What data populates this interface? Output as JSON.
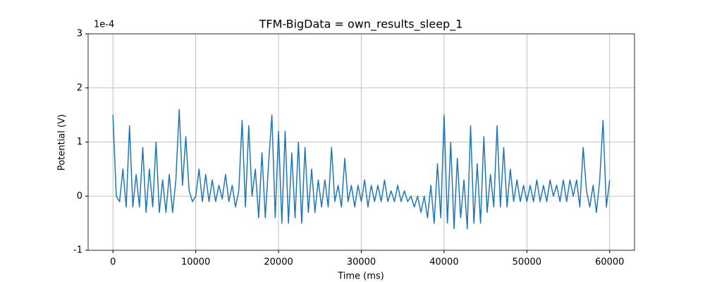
{
  "chart_data": {
    "type": "line",
    "title": "TFM-BigData = own_results_sleep_1",
    "x_label": "Time (ms)",
    "y_label": "Potential (V)",
    "y_offset_label": "1e-4",
    "x": [
      0,
      400,
      800,
      1200,
      1600,
      2000,
      2400,
      2800,
      3200,
      3600,
      4000,
      4400,
      4800,
      5200,
      5600,
      6000,
      6400,
      6800,
      7200,
      7600,
      8000,
      8400,
      8800,
      9200,
      9600,
      10000,
      10400,
      10800,
      11200,
      11600,
      12000,
      12400,
      12800,
      13200,
      13600,
      14000,
      14400,
      14800,
      15200,
      15600,
      16000,
      16400,
      16800,
      17200,
      17600,
      18000,
      18400,
      18800,
      19200,
      19600,
      20000,
      20400,
      20800,
      21200,
      21600,
      22000,
      22400,
      22800,
      23200,
      23600,
      24000,
      24400,
      24800,
      25200,
      25600,
      26000,
      26400,
      26800,
      27200,
      27600,
      28000,
      28400,
      28800,
      29200,
      29600,
      30000,
      30400,
      30800,
      31200,
      31600,
      32000,
      32400,
      32800,
      33200,
      33600,
      34000,
      34400,
      34800,
      35200,
      35600,
      36000,
      36400,
      36800,
      37200,
      37600,
      38000,
      38400,
      38800,
      39200,
      39600,
      40000,
      40400,
      40800,
      41200,
      41600,
      42000,
      42400,
      42800,
      43200,
      43600,
      44000,
      44400,
      44800,
      45200,
      45600,
      46000,
      46400,
      46800,
      47200,
      47600,
      48000,
      48400,
      48800,
      49200,
      49600,
      50000,
      50400,
      50800,
      51200,
      51600,
      52000,
      52400,
      52800,
      53200,
      53600,
      54000,
      54400,
      54800,
      55200,
      55600,
      56000,
      56400,
      56800,
      57200,
      57600,
      58000,
      58400,
      58800,
      59200,
      59600,
      60000
    ],
    "series": [
      {
        "name": "own_results_sleep_1",
        "color": "#1f77b4",
        "values": [
          1.5,
          0.0,
          -0.1,
          0.5,
          -0.2,
          1.3,
          -0.2,
          0.4,
          -0.2,
          0.9,
          -0.3,
          0.5,
          -0.2,
          1.0,
          -0.3,
          0.3,
          -0.3,
          0.4,
          -0.3,
          0.3,
          1.6,
          0.2,
          1.1,
          0.1,
          -0.1,
          0.0,
          0.5,
          -0.1,
          0.4,
          -0.1,
          0.3,
          -0.1,
          0.2,
          -0.05,
          0.4,
          -0.1,
          0.2,
          -0.2,
          0.1,
          1.4,
          -0.2,
          1.3,
          0.0,
          0.5,
          -0.4,
          0.8,
          -0.4,
          0.6,
          1.5,
          -0.4,
          1.2,
          -0.5,
          1.2,
          -0.5,
          0.8,
          -0.4,
          1.0,
          -0.5,
          0.9,
          -0.3,
          0.5,
          -0.3,
          0.3,
          -0.2,
          0.3,
          -0.2,
          0.9,
          -0.1,
          0.2,
          -0.2,
          0.7,
          -0.1,
          0.2,
          -0.2,
          0.2,
          -0.1,
          0.3,
          -0.2,
          0.2,
          -0.1,
          0.2,
          -0.1,
          0.3,
          -0.1,
          0.1,
          -0.1,
          0.2,
          -0.1,
          0.1,
          -0.1,
          0.0,
          -0.2,
          0.0,
          -0.3,
          0.0,
          -0.4,
          0.2,
          -0.5,
          0.6,
          -0.4,
          1.5,
          -0.5,
          1.0,
          -0.6,
          0.7,
          -0.4,
          0.3,
          -0.6,
          1.3,
          -0.5,
          0.6,
          -0.5,
          1.1,
          -0.3,
          0.4,
          -0.2,
          1.3,
          -0.2,
          0.9,
          -0.2,
          0.5,
          -0.1,
          0.3,
          -0.1,
          0.2,
          -0.1,
          0.2,
          -0.1,
          0.3,
          -0.1,
          0.2,
          -0.1,
          0.3,
          0.0,
          0.2,
          -0.1,
          0.3,
          -0.1,
          0.3,
          0.0,
          0.3,
          -0.2,
          0.9,
          0.1,
          -0.2,
          0.2,
          -0.3,
          0.3,
          1.4,
          -0.2,
          0.3
        ]
      }
    ],
    "xlim": [
      -3000,
      63000
    ],
    "ylim": [
      -1,
      3
    ],
    "xticks": [
      0,
      10000,
      20000,
      30000,
      40000,
      50000,
      60000
    ],
    "yticks": [
      -1,
      0,
      1,
      2,
      3
    ],
    "grid": true
  }
}
